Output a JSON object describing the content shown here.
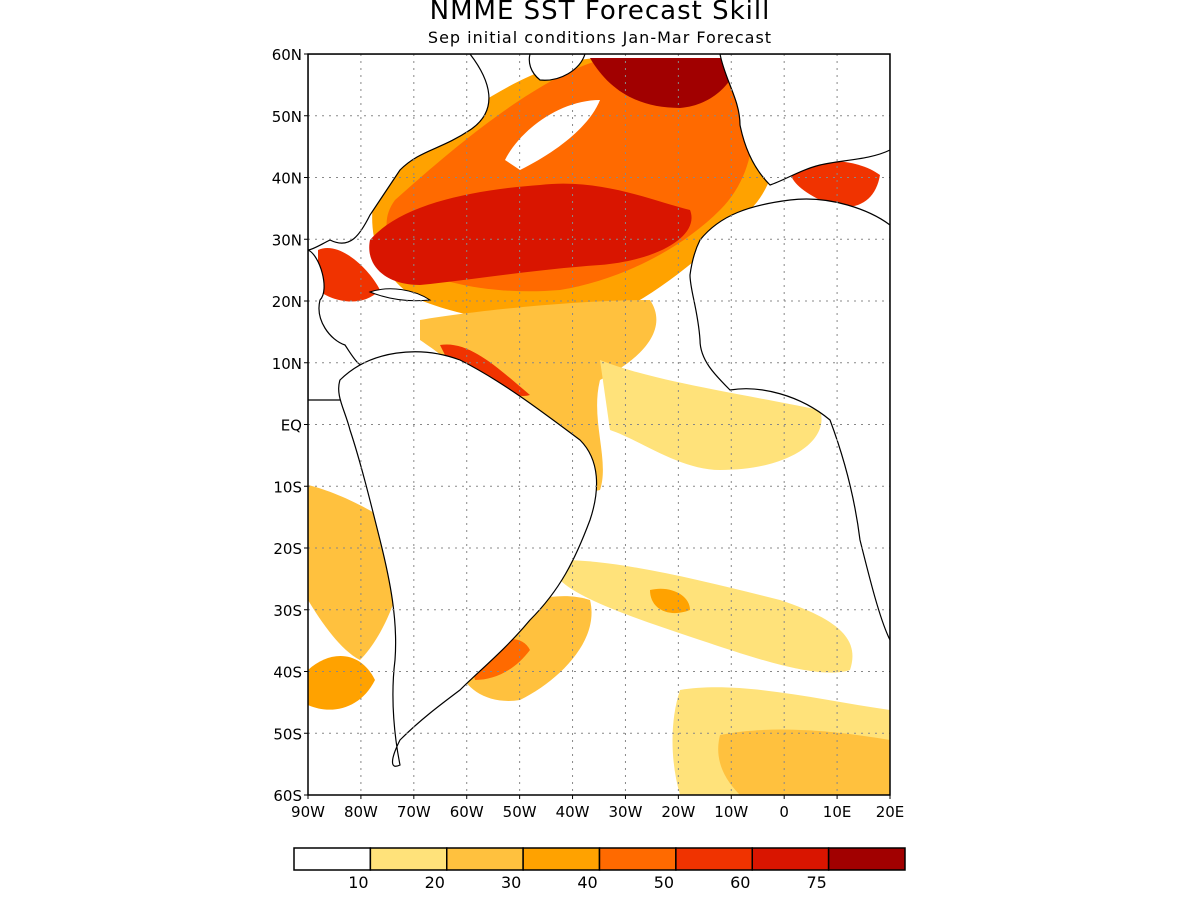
{
  "title": "NMME SST Forecast Skill",
  "subtitle": "Sep initial conditions  Jan-Mar Forecast",
  "lat_labels": [
    "60N",
    "50N",
    "40N",
    "30N",
    "20N",
    "10N",
    "EQ",
    "10S",
    "20S",
    "30S",
    "40S",
    "50S",
    "60S"
  ],
  "lon_labels": [
    "90W",
    "80W",
    "70W",
    "60W",
    "50W",
    "40W",
    "30W",
    "20W",
    "10W",
    "0",
    "10E",
    "20E"
  ],
  "colorbar": {
    "labels": [
      "10",
      "20",
      "30",
      "40",
      "50",
      "60",
      "75"
    ],
    "colors": [
      "#ffffff",
      "#ffe27a",
      "#ffc13e",
      "#ffa200",
      "#ff6a00",
      "#f03300",
      "#d91500",
      "#a10000"
    ]
  },
  "map": {
    "lon_range": [
      -90,
      20
    ],
    "lat_range": [
      -60,
      60
    ],
    "variable": "SST forecast skill",
    "land_color": "#ffffff"
  }
}
